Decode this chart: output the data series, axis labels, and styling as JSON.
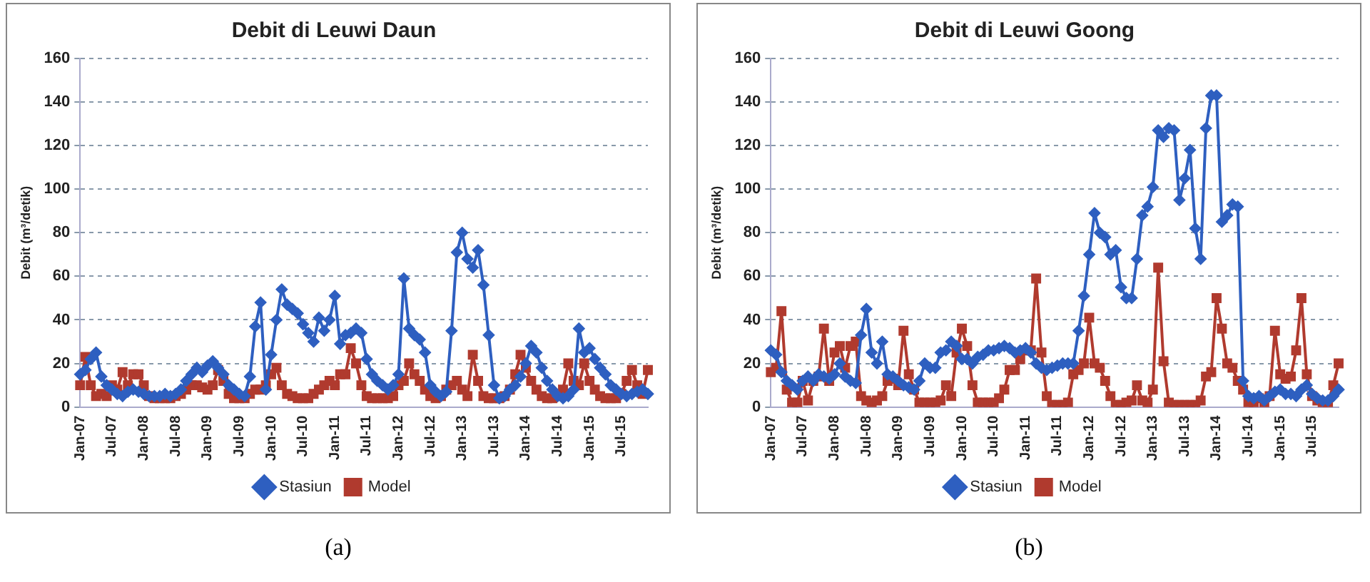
{
  "chart_data": [
    {
      "type": "line",
      "title": "Debit di Leuwi Daun",
      "ylabel": "Debit (m³/detik)",
      "annotations": [
        "(a)"
      ],
      "categories": [
        "Jan-07",
        null,
        null,
        null,
        null,
        null,
        "Jul-07",
        null,
        null,
        null,
        null,
        null,
        "Jan-08",
        null,
        null,
        null,
        null,
        null,
        "Jul-08",
        null,
        null,
        null,
        null,
        null,
        "Jan-09",
        null,
        null,
        null,
        null,
        null,
        "Jul-09",
        null,
        null,
        null,
        null,
        null,
        "Jan-10",
        null,
        null,
        null,
        null,
        null,
        "Jul-10",
        null,
        null,
        null,
        null,
        null,
        "Jan-11",
        null,
        null,
        null,
        null,
        null,
        "Jul-11",
        null,
        null,
        null,
        null,
        null,
        "Jan-12",
        null,
        null,
        null,
        null,
        null,
        "Jul-12",
        null,
        null,
        null,
        null,
        null,
        "Jan-13",
        null,
        null,
        null,
        null,
        null,
        "Jul-13",
        null,
        null,
        null,
        null,
        null,
        "Jan-14",
        null,
        null,
        null,
        null,
        null,
        "Jul-14",
        null,
        null,
        null,
        null,
        null,
        "Jan-15",
        null,
        null,
        null,
        null,
        null,
        "Jul-15",
        null,
        null,
        null,
        null,
        null
      ],
      "series": [
        {
          "name": "Stasiun",
          "color": "#2e5fc0",
          "marker": "diamond",
          "values": [
            15,
            17,
            22,
            25,
            14,
            10,
            8,
            6,
            5,
            7,
            8,
            7,
            6,
            5,
            5,
            5,
            6,
            5,
            6,
            8,
            12,
            15,
            18,
            16,
            19,
            21,
            18,
            15,
            10,
            8,
            6,
            5,
            14,
            37,
            48,
            8,
            24,
            40,
            54,
            47,
            45,
            43,
            38,
            34,
            30,
            41,
            35,
            40,
            51,
            29,
            33,
            34,
            36,
            34,
            22,
            15,
            12,
            10,
            8,
            10,
            15,
            59,
            36,
            33,
            31,
            25,
            10,
            7,
            5,
            7,
            35,
            71,
            80,
            68,
            64,
            72,
            56,
            33,
            10,
            4,
            5,
            8,
            10,
            14,
            20,
            28,
            25,
            18,
            12,
            8,
            5,
            4,
            5,
            8,
            36,
            25,
            27,
            22,
            18,
            15,
            10,
            8,
            6,
            5,
            6,
            7,
            8,
            6
          ]
        },
        {
          "name": "Model",
          "color": "#b03a2e",
          "marker": "square",
          "values": [
            10,
            23,
            10,
            5,
            6,
            5,
            10,
            8,
            16,
            10,
            15,
            15,
            10,
            5,
            4,
            4,
            4,
            4,
            5,
            6,
            8,
            10,
            10,
            9,
            8,
            10,
            17,
            12,
            6,
            4,
            4,
            4,
            6,
            8,
            8,
            10,
            15,
            18,
            10,
            6,
            5,
            4,
            4,
            4,
            6,
            8,
            10,
            12,
            10,
            15,
            15,
            27,
            20,
            10,
            5,
            4,
            4,
            4,
            4,
            5,
            10,
            12,
            20,
            15,
            12,
            8,
            5,
            4,
            5,
            8,
            10,
            12,
            8,
            5,
            24,
            12,
            5,
            4,
            4,
            4,
            5,
            8,
            15,
            24,
            18,
            12,
            8,
            5,
            4,
            4,
            5,
            8,
            20,
            12,
            10,
            20,
            12,
            8,
            5,
            4,
            4,
            4,
            6,
            12,
            17,
            10,
            6,
            17
          ]
        }
      ],
      "ylim": [
        0,
        160
      ],
      "yticks": [
        0,
        20,
        40,
        60,
        80,
        100,
        120,
        140,
        160
      ],
      "grid": "y",
      "legend": "bottom"
    },
    {
      "type": "line",
      "title": "Debit di Leuwi Goong",
      "ylabel": "Debit (m³/detik)",
      "annotations": [
        "(b)"
      ],
      "categories": [
        "Jan-07",
        null,
        null,
        null,
        null,
        null,
        "Jul-07",
        null,
        null,
        null,
        null,
        null,
        "Jan-08",
        null,
        null,
        null,
        null,
        null,
        "Jul-08",
        null,
        null,
        null,
        null,
        null,
        "Jan-09",
        null,
        null,
        null,
        null,
        null,
        "Jul-09",
        null,
        null,
        null,
        null,
        null,
        "Jan-10",
        null,
        null,
        null,
        null,
        null,
        "Jul-10",
        null,
        null,
        null,
        null,
        null,
        "Jan-11",
        null,
        null,
        null,
        null,
        null,
        "Jul-11",
        null,
        null,
        null,
        null,
        null,
        "Jan-12",
        null,
        null,
        null,
        null,
        null,
        "Jul-12",
        null,
        null,
        null,
        null,
        null,
        "Jan-13",
        null,
        null,
        null,
        null,
        null,
        "Jul-13",
        null,
        null,
        null,
        null,
        null,
        "Jan-14",
        null,
        null,
        null,
        null,
        null,
        "Jul-14",
        null,
        null,
        null,
        null,
        null,
        "Jan-15",
        null,
        null,
        null,
        null,
        null,
        "Jul-15",
        null,
        null,
        null,
        null,
        null
      ],
      "series": [
        {
          "name": "Stasiun",
          "color": "#2e5fc0",
          "marker": "diamond",
          "values": [
            26,
            24,
            16,
            12,
            10,
            8,
            12,
            14,
            12,
            15,
            14,
            13,
            15,
            20,
            14,
            12,
            11,
            33,
            45,
            25,
            20,
            30,
            15,
            14,
            12,
            10,
            9,
            8,
            12,
            20,
            18,
            18,
            25,
            26,
            30,
            28,
            22,
            22,
            20,
            23,
            24,
            26,
            26,
            27,
            28,
            27,
            25,
            26,
            27,
            25,
            20,
            18,
            17,
            18,
            19,
            20,
            20,
            20,
            35,
            51,
            70,
            89,
            80,
            78,
            70,
            72,
            55,
            50,
            50,
            68,
            88,
            92,
            101,
            127,
            124,
            128,
            127,
            95,
            105,
            118,
            82,
            68,
            128,
            143,
            143,
            85,
            88,
            93,
            92,
            12,
            5,
            4,
            5,
            3,
            5,
            7,
            8,
            6,
            6,
            5,
            8,
            10,
            6,
            4,
            3,
            3,
            5,
            8
          ]
        },
        {
          "name": "Model",
          "color": "#b03a2e",
          "marker": "square",
          "values": [
            16,
            18,
            44,
            8,
            2,
            2,
            12,
            3,
            12,
            14,
            36,
            12,
            25,
            28,
            18,
            28,
            30,
            5,
            3,
            2,
            3,
            5,
            12,
            13,
            10,
            35,
            15,
            8,
            2,
            2,
            2,
            2,
            3,
            10,
            5,
            25,
            36,
            28,
            10,
            2,
            2,
            2,
            2,
            4,
            8,
            17,
            17,
            22,
            26,
            26,
            59,
            25,
            5,
            1,
            1,
            1,
            2,
            15,
            17,
            20,
            41,
            20,
            18,
            12,
            5,
            1,
            1,
            2,
            3,
            10,
            3,
            2,
            8,
            64,
            21,
            2,
            1,
            1,
            1,
            1,
            1,
            3,
            14,
            16,
            50,
            36,
            20,
            18,
            12,
            8,
            2,
            2,
            4,
            2,
            5,
            35,
            15,
            13,
            14,
            26,
            50,
            15,
            5,
            3,
            2,
            2,
            10,
            20
          ]
        }
      ],
      "ylim": [
        0,
        160
      ],
      "yticks": [
        0,
        20,
        40,
        60,
        80,
        100,
        120,
        140,
        160
      ],
      "grid": "y",
      "legend": "bottom"
    }
  ]
}
